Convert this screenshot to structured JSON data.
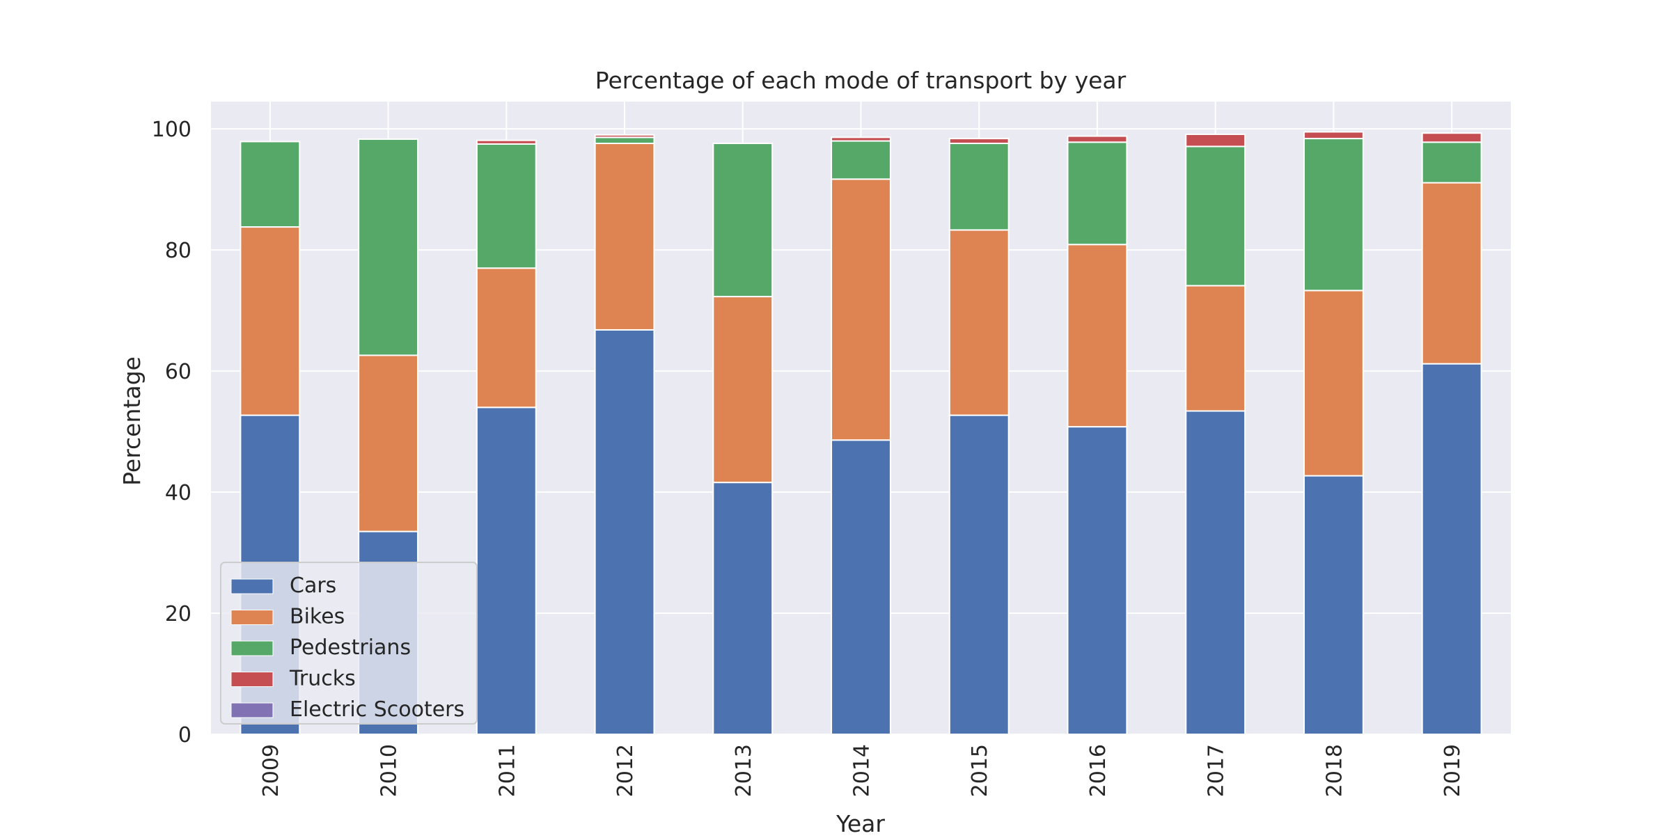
{
  "chart_data": {
    "type": "bar",
    "stacked": true,
    "title": "Percentage of each mode of transport by year",
    "xlabel": "Year",
    "ylabel": "Percentage",
    "ylim": [
      0,
      104.5
    ],
    "yticks": [
      0,
      20,
      40,
      60,
      80,
      100
    ],
    "grid": true,
    "legend_position": "lower-left",
    "categories": [
      "2009",
      "2010",
      "2011",
      "2012",
      "2013",
      "2014",
      "2015",
      "2016",
      "2017",
      "2018",
      "2019"
    ],
    "series": [
      {
        "name": "Cars",
        "color": "#4c72b0",
        "values": [
          52.7,
          33.5,
          54.0,
          66.8,
          41.6,
          48.6,
          52.7,
          50.8,
          53.4,
          42.7,
          61.2
        ]
      },
      {
        "name": "Bikes",
        "color": "#dd8452",
        "values": [
          31.1,
          29.1,
          23.0,
          30.8,
          30.7,
          43.1,
          30.6,
          30.1,
          20.7,
          30.6,
          29.9
        ]
      },
      {
        "name": "Pedestrians",
        "color": "#55a868",
        "values": [
          14.1,
          35.7,
          20.5,
          1.0,
          25.3,
          6.3,
          14.3,
          16.9,
          23.0,
          25.1,
          6.7
        ]
      },
      {
        "name": "Trucks",
        "color": "#c44e52",
        "values": [
          0.0,
          0.0,
          0.6,
          0.4,
          0.0,
          0.6,
          0.8,
          1.0,
          2.0,
          1.1,
          1.5
        ]
      },
      {
        "name": "Electric Scooters",
        "color": "#8172b3",
        "values": [
          0.0,
          0.0,
          0.0,
          0.0,
          0.0,
          0.0,
          0.0,
          0.0,
          0.0,
          0.0,
          0.0
        ]
      }
    ]
  }
}
